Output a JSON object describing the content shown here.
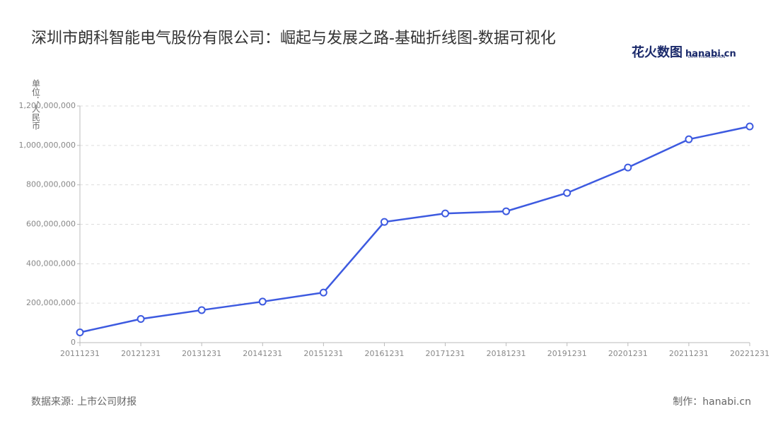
{
  "chart_data": {
    "type": "line",
    "title": "深圳市朗科智能电气股份有限公司：崛起与发展之路-基础折线图-数据可视化",
    "y_label": "单位：人民币",
    "source": "数据来源: 上市公司财报",
    "credit": "制作：hanabi.cn",
    "logo": {
      "brand": "花火数图",
      "site": "hanabi.cn",
      "tagline": "DATA VISUALIZATION"
    },
    "categories": [
      "20111231",
      "20121231",
      "20131231",
      "20141231",
      "20151231",
      "20161231",
      "20171231",
      "20181231",
      "20191231",
      "20201231",
      "20211231",
      "20221231"
    ],
    "series": [
      {
        "color": "#3d5ae0",
        "values": [
          52000000,
          120000000,
          165000000,
          208000000,
          254000000,
          612000000,
          655000000,
          666000000,
          759000000,
          888000000,
          1031000000,
          1096000000
        ]
      }
    ],
    "ylim": [
      0,
      1200000000
    ],
    "yticks": [
      0,
      {
        "value": 200000000,
        "label": "200,000,000"
      },
      {
        "value": 400000000,
        "label": "400,000,000"
      },
      {
        "value": 600000000,
        "label": "600,000,000"
      },
      {
        "value": 800000000,
        "label": "800,000,000"
      },
      {
        "value": 1000000000,
        "label": "1,000,000,000"
      },
      {
        "value": 1200000000,
        "label": "1,200,000,000"
      }
    ],
    "grid": true
  }
}
